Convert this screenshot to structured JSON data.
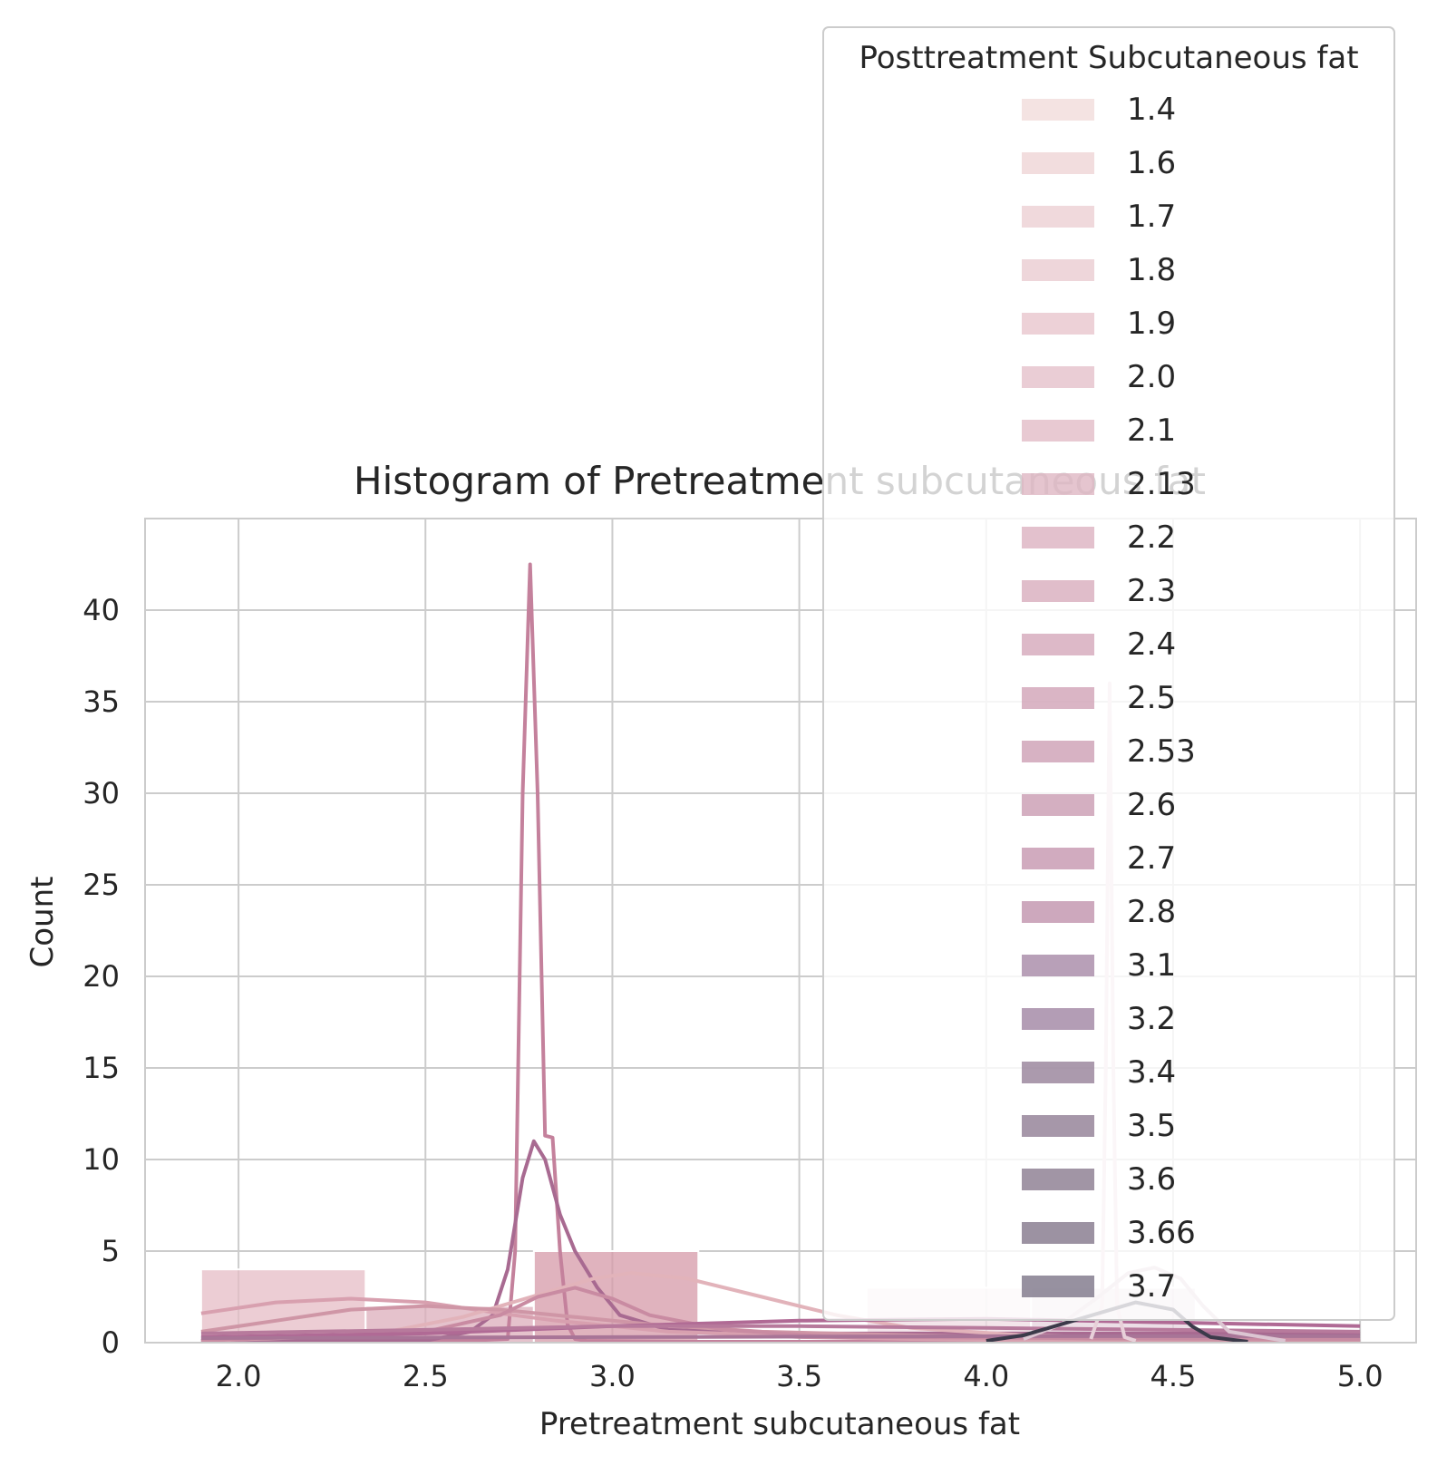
{
  "chart_data": {
    "type": "bar",
    "title": "Histogram of Pretreatment subcutaneous fat",
    "xlabel": "Pretreatment subcutaneous fat",
    "ylabel": "Count",
    "xlim": [
      1.75,
      5.15
    ],
    "ylim": [
      0,
      45
    ],
    "xticks": [
      "2.0",
      "2.5",
      "3.0",
      "3.5",
      "4.0",
      "4.5",
      "5.0"
    ],
    "xtick_values": [
      2.0,
      2.5,
      3.0,
      3.5,
      4.0,
      4.5,
      5.0
    ],
    "yticks": [
      "0",
      "5",
      "10",
      "15",
      "20",
      "25",
      "30",
      "35",
      "40"
    ],
    "ytick_values": [
      0,
      5,
      10,
      15,
      20,
      25,
      30,
      35,
      40
    ],
    "grid": true,
    "legend": {
      "title": "Posttreatment Subcutaneous fat",
      "placement": "upper-right",
      "entries": [
        "1.4",
        "1.6",
        "1.7",
        "1.8",
        "1.9",
        "2.0",
        "2.1",
        "2.13",
        "2.2",
        "2.3",
        "2.4",
        "2.5",
        "2.53",
        "2.6",
        "2.7",
        "2.8",
        "3.1",
        "3.2",
        "3.4",
        "3.5",
        "3.6",
        "3.66",
        "3.7"
      ],
      "colors": [
        "#f1dcdb",
        "#efd5d6",
        "#ecd0d3",
        "#eaccd1",
        "#e8c6cd",
        "#e5c1ca",
        "#e2bcc7",
        "#dfb7c3",
        "#dcb2c0",
        "#d8adbd",
        "#d5a8ba",
        "#d1a3b7",
        "#cd9fb4",
        "#c99bb2",
        "#c596af",
        "#c192ac",
        "#a688a6",
        "#a084a2",
        "#968198",
        "#907d93",
        "#897a8f",
        "#83778b",
        "#7d7588"
      ]
    },
    "bars": [
      {
        "x0": 1.9,
        "x1": 2.34,
        "count": 4,
        "color": "#e6bcc6"
      },
      {
        "x0": 2.34,
        "x1": 2.79,
        "count": 2,
        "color": "#dcaebb"
      },
      {
        "x0": 2.79,
        "x1": 3.23,
        "count": 5,
        "color": "#d699a8"
      },
      {
        "x0": 3.68,
        "x1": 4.12,
        "count": 3,
        "color": "#efdce3"
      },
      {
        "x0": 4.12,
        "x1": 4.56,
        "count": 3,
        "color": "#e6d3dd"
      }
    ],
    "series": [
      {
        "color": "#c4819c",
        "x": [
          1.9,
          2.6,
          2.72,
          2.74,
          2.76,
          2.78,
          2.8,
          2.82,
          2.84,
          2.86,
          2.88,
          2.9,
          2.93,
          3.2,
          5.0
        ],
        "y": [
          0.1,
          0.1,
          0.2,
          5,
          30,
          42.5,
          30,
          11.3,
          11.2,
          5,
          1,
          0.2,
          0.1,
          0.05,
          0.05
        ]
      },
      {
        "color": "#a86a91",
        "x": [
          1.9,
          2.5,
          2.62,
          2.68,
          2.72,
          2.76,
          2.79,
          2.82,
          2.86,
          2.9,
          2.96,
          3.02,
          3.15,
          3.5,
          5.0
        ],
        "y": [
          0.1,
          0.1,
          0.6,
          1.5,
          4,
          9,
          11,
          10,
          7,
          5,
          3,
          1.5,
          0.7,
          0.5,
          0.5
        ]
      },
      {
        "color": "#d8a0af",
        "x": [
          1.9,
          2.1,
          2.3,
          2.5,
          2.7,
          2.85,
          2.95,
          3.05,
          3.15,
          3.3,
          3.5,
          3.8,
          4.2,
          5.0
        ],
        "y": [
          1.6,
          2.2,
          2.4,
          2.2,
          1.6,
          1.2,
          1.0,
          0.8,
          0.6,
          0.5,
          0.3,
          0.2,
          0.1,
          0.05
        ]
      },
      {
        "color": "#e2b3ba",
        "x": [
          1.9,
          2.2,
          2.4,
          2.6,
          2.8,
          2.95,
          3.05,
          3.2,
          3.4,
          3.6,
          3.8,
          4.1,
          4.5,
          5.0
        ],
        "y": [
          0.1,
          0.3,
          0.6,
          1.4,
          2.6,
          3.5,
          3.8,
          3.5,
          2.5,
          1.5,
          0.8,
          0.4,
          0.2,
          0.1
        ]
      },
      {
        "color": "#cf96a6",
        "x": [
          1.9,
          2.1,
          2.3,
          2.5,
          2.7,
          2.9,
          3.1,
          3.4,
          3.8,
          4.3,
          5.0
        ],
        "y": [
          0.6,
          1.2,
          1.8,
          2.0,
          1.8,
          1.4,
          1.0,
          0.6,
          0.4,
          0.2,
          0.1
        ]
      },
      {
        "color": "#c98ba2",
        "x": [
          1.9,
          2.5,
          2.7,
          2.8,
          2.9,
          3.0,
          3.1,
          3.3,
          3.6,
          5.0
        ],
        "y": [
          0.1,
          0.6,
          1.5,
          2.5,
          3.0,
          2.4,
          1.5,
          0.7,
          0.3,
          0.2
        ]
      },
      {
        "color": "#b06a95",
        "x": [
          1.9,
          2.5,
          3.0,
          3.5,
          4.0,
          4.5,
          5.0
        ],
        "y": [
          0.3,
          0.5,
          0.9,
          1.2,
          1.3,
          1.1,
          0.9
        ]
      },
      {
        "color": "#b77a9c",
        "x": [
          1.9,
          2.5,
          3.0,
          3.5,
          4.0,
          4.5,
          5.0
        ],
        "y": [
          0.5,
          0.7,
          0.9,
          0.9,
          0.8,
          0.7,
          0.6
        ]
      },
      {
        "color": "#a87597",
        "x": [
          1.9,
          3.0,
          4.0,
          5.0
        ],
        "y": [
          0.25,
          0.3,
          0.35,
          0.35
        ]
      },
      {
        "color": "#e8d0d9",
        "x": [
          4.28,
          4.31,
          4.32,
          4.33,
          4.34,
          4.35,
          4.37,
          4.4
        ],
        "y": [
          0.2,
          2,
          15,
          36,
          15,
          2,
          0.3,
          0.1
        ]
      },
      {
        "color": "#dcc5d2",
        "x": [
          4.1,
          4.2,
          4.3,
          4.38,
          4.45,
          4.52,
          4.58,
          4.65,
          4.8
        ],
        "y": [
          0.2,
          1,
          2.5,
          3.8,
          4.1,
          3.5,
          2,
          0.6,
          0.1
        ]
      },
      {
        "color": "#3c3a4a",
        "x": [
          4.0,
          4.1,
          4.2,
          4.3,
          4.4,
          4.5,
          4.55,
          4.6,
          4.7
        ],
        "y": [
          0.1,
          0.4,
          1.0,
          1.6,
          2.2,
          1.8,
          0.9,
          0.3,
          0.05
        ]
      }
    ]
  }
}
